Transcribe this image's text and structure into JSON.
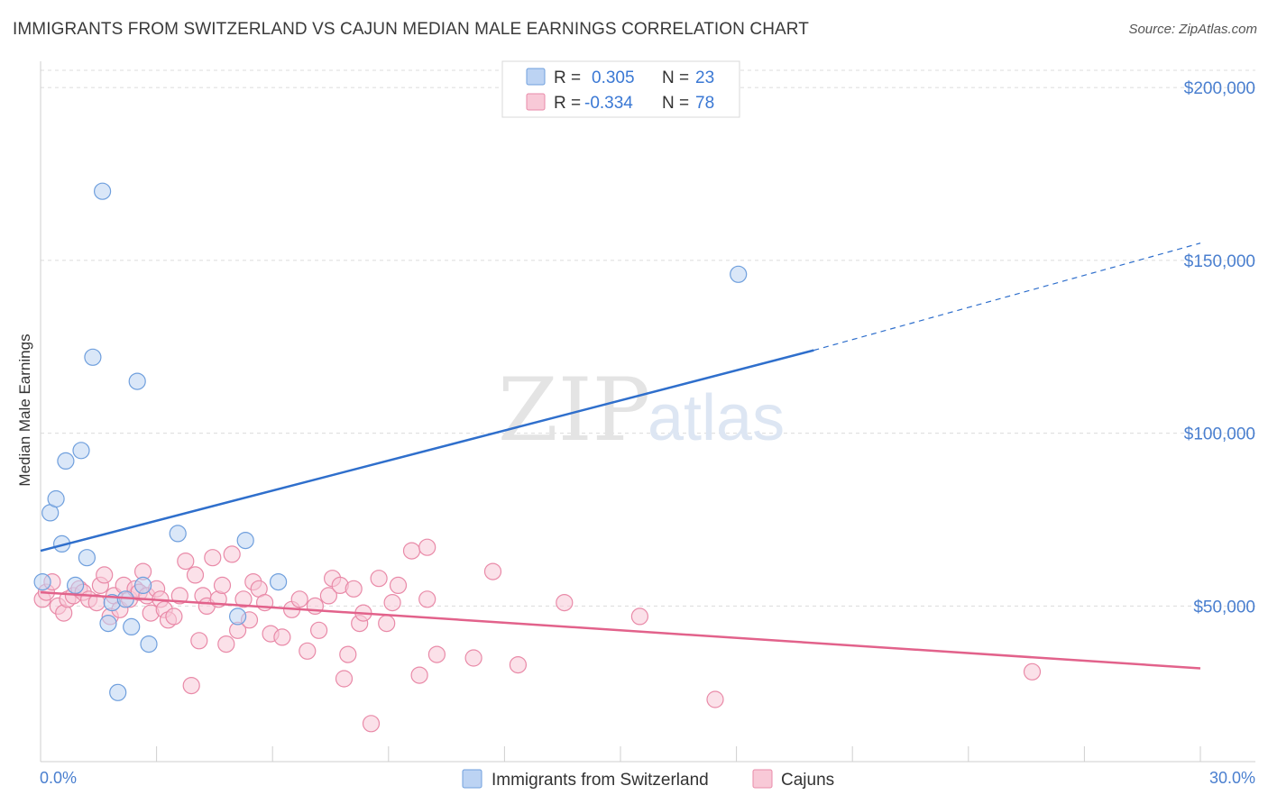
{
  "title": "IMMIGRANTS FROM SWITZERLAND VS CAJUN MEDIAN MALE EARNINGS CORRELATION CHART",
  "source": "Source: ZipAtlas.com",
  "watermark": {
    "zip": "ZIP",
    "atlas": "atlas"
  },
  "colors": {
    "blue_fill": "#bcd3f3",
    "blue_stroke": "#6f9fdd",
    "blue_line": "#2f6fcc",
    "pink_fill": "#f8c9d7",
    "pink_stroke": "#e98aa8",
    "pink_line": "#e2628b",
    "grid": "#dcdcdc",
    "axis_text": "#4a7fcf"
  },
  "stats": [
    {
      "r_label": "R =",
      "r_value": "0.305",
      "n_label": "N =",
      "n_value": "23"
    },
    {
      "r_label": "R =",
      "r_value": "-0.334",
      "n_label": "N =",
      "n_value": "78"
    }
  ],
  "legend": {
    "series1": "Immigrants from Switzerland",
    "series2": "Cajuns"
  },
  "chart_data": {
    "type": "scatter",
    "title": "IMMIGRANTS FROM SWITZERLAND VS CAJUN MEDIAN MALE EARNINGS CORRELATION CHART",
    "xlabel": "",
    "ylabel": "Median Male Earnings",
    "xlim": [
      0,
      30
    ],
    "ylim": [
      5000,
      205000
    ],
    "x_tick_labels": [
      "0.0%",
      "30.0%"
    ],
    "y_ticks": [
      50000,
      100000,
      150000,
      200000
    ],
    "y_tick_labels": [
      "$50,000",
      "$100,000",
      "$150,000",
      "$200,000"
    ],
    "grid": true,
    "legend_position": "bottom-center",
    "series": [
      {
        "name": "Immigrants from Switzerland",
        "color": "#6f9fdd",
        "points": [
          [
            0.05,
            57000
          ],
          [
            0.25,
            77000
          ],
          [
            0.4,
            81000
          ],
          [
            0.55,
            68000
          ],
          [
            0.65,
            92000
          ],
          [
            0.9,
            56000
          ],
          [
            1.05,
            95000
          ],
          [
            1.2,
            64000
          ],
          [
            1.35,
            122000
          ],
          [
            1.6,
            170000
          ],
          [
            1.75,
            45000
          ],
          [
            1.85,
            51000
          ],
          [
            2.0,
            25000
          ],
          [
            2.2,
            52000
          ],
          [
            2.35,
            44000
          ],
          [
            2.5,
            115000
          ],
          [
            2.65,
            56000
          ],
          [
            2.8,
            39000
          ],
          [
            3.55,
            71000
          ],
          [
            5.1,
            47000
          ],
          [
            5.3,
            69000
          ],
          [
            6.15,
            57000
          ],
          [
            18.05,
            146000
          ]
        ]
      },
      {
        "name": "Cajuns",
        "color": "#e98aa8",
        "points": [
          [
            0.05,
            52000
          ],
          [
            0.15,
            54000
          ],
          [
            0.3,
            57000
          ],
          [
            0.45,
            50000
          ],
          [
            0.6,
            48000
          ],
          [
            0.7,
            52000
          ],
          [
            0.85,
            53000
          ],
          [
            1.0,
            55000
          ],
          [
            1.1,
            54000
          ],
          [
            1.25,
            52000
          ],
          [
            1.45,
            51000
          ],
          [
            1.55,
            56000
          ],
          [
            1.65,
            59000
          ],
          [
            1.8,
            47000
          ],
          [
            1.9,
            53000
          ],
          [
            2.05,
            49000
          ],
          [
            2.15,
            56000
          ],
          [
            2.3,
            52000
          ],
          [
            2.45,
            55000
          ],
          [
            2.55,
            54000
          ],
          [
            2.65,
            60000
          ],
          [
            2.75,
            53000
          ],
          [
            2.85,
            48000
          ],
          [
            3.0,
            55000
          ],
          [
            3.1,
            52000
          ],
          [
            3.2,
            49000
          ],
          [
            3.3,
            46000
          ],
          [
            3.45,
            47000
          ],
          [
            3.6,
            53000
          ],
          [
            3.75,
            63000
          ],
          [
            3.9,
            27000
          ],
          [
            4.0,
            59000
          ],
          [
            4.1,
            40000
          ],
          [
            4.2,
            53000
          ],
          [
            4.3,
            50000
          ],
          [
            4.45,
            64000
          ],
          [
            4.6,
            52000
          ],
          [
            4.7,
            56000
          ],
          [
            4.8,
            39000
          ],
          [
            4.95,
            65000
          ],
          [
            5.1,
            43000
          ],
          [
            5.25,
            52000
          ],
          [
            5.4,
            46000
          ],
          [
            5.5,
            57000
          ],
          [
            5.65,
            55000
          ],
          [
            5.8,
            51000
          ],
          [
            5.95,
            42000
          ],
          [
            6.25,
            41000
          ],
          [
            6.5,
            49000
          ],
          [
            6.7,
            52000
          ],
          [
            6.9,
            37000
          ],
          [
            7.1,
            50000
          ],
          [
            7.2,
            43000
          ],
          [
            7.45,
            53000
          ],
          [
            7.55,
            58000
          ],
          [
            7.75,
            56000
          ],
          [
            7.85,
            29000
          ],
          [
            7.95,
            36000
          ],
          [
            8.1,
            55000
          ],
          [
            8.25,
            45000
          ],
          [
            8.35,
            48000
          ],
          [
            8.55,
            16000
          ],
          [
            8.75,
            58000
          ],
          [
            8.95,
            45000
          ],
          [
            9.1,
            51000
          ],
          [
            9.25,
            56000
          ],
          [
            9.6,
            66000
          ],
          [
            9.8,
            30000
          ],
          [
            10.0,
            67000
          ],
          [
            10.25,
            36000
          ],
          [
            10.0,
            52000
          ],
          [
            11.2,
            35000
          ],
          [
            11.7,
            60000
          ],
          [
            12.35,
            33000
          ],
          [
            13.55,
            51000
          ],
          [
            15.5,
            47000
          ],
          [
            17.45,
            23000
          ],
          [
            25.65,
            31000
          ]
        ]
      }
    ],
    "trendlines": [
      {
        "series": "Immigrants from Switzerland",
        "x": [
          0,
          20
        ],
        "y": [
          66000,
          124000
        ],
        "dashed_extension_to_x": 30,
        "dashed_extension_y": 155000
      },
      {
        "series": "Cajuns",
        "x": [
          0,
          30
        ],
        "y": [
          54000,
          32000
        ]
      }
    ]
  }
}
